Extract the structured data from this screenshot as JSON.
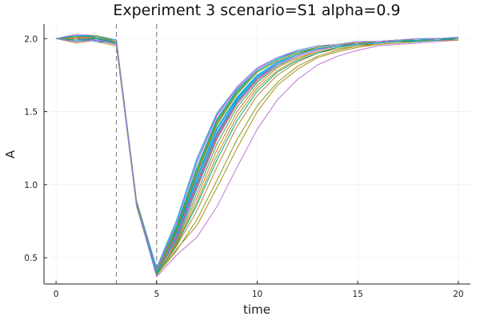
{
  "chart_data": {
    "type": "line",
    "title": "Experiment 3  scenario=S1  alpha=0.9",
    "xlabel": "time",
    "ylabel": "A",
    "xlim": [
      -0.6,
      20.6
    ],
    "ylim": [
      0.32,
      2.1
    ],
    "xticks": [
      0,
      5,
      10,
      15,
      20
    ],
    "yticks": [
      0.5,
      1.0,
      1.5,
      2.0
    ],
    "xtick_labels": [
      "0",
      "5",
      "10",
      "15",
      "20"
    ],
    "ytick_labels": [
      "0.5",
      "1.0",
      "1.5",
      "2.0"
    ],
    "grid": true,
    "legend": "none",
    "vlines": [
      3,
      5
    ],
    "x": [
      0,
      1,
      2,
      3,
      4,
      5,
      6,
      7,
      8,
      9,
      10,
      11,
      12,
      13,
      14,
      15,
      16,
      17,
      18,
      19,
      20
    ],
    "palette": [
      "#009AFA",
      "#E36F47",
      "#3EA44E",
      "#C371D2",
      "#AC8E18",
      "#00AAAE",
      "#ED5E93",
      "#C68225",
      "#00A98D",
      "#8E971D",
      "#00A9CD",
      "#9B7FE8"
    ],
    "series": [
      {
        "values": [
          2.0,
          2.02,
          2.01,
          1.98,
          0.88,
          0.39,
          0.66,
          1.02,
          1.36,
          1.58,
          1.74,
          1.83,
          1.89,
          1.93,
          1.95,
          1.97,
          1.97,
          1.98,
          1.98,
          1.99,
          1.99
        ]
      },
      {
        "values": [
          2.0,
          2.0,
          1.99,
          1.97,
          0.86,
          0.41,
          0.7,
          1.08,
          1.42,
          1.62,
          1.77,
          1.85,
          1.9,
          1.93,
          1.95,
          1.96,
          1.98,
          1.98,
          1.99,
          2.0,
          2.0
        ]
      },
      {
        "values": [
          2.0,
          1.98,
          2.0,
          1.96,
          0.87,
          0.4,
          0.62,
          0.94,
          1.28,
          1.53,
          1.7,
          1.81,
          1.88,
          1.92,
          1.95,
          1.96,
          1.97,
          1.98,
          1.99,
          1.99,
          2.0
        ]
      },
      {
        "values": [
          2.0,
          2.03,
          2.02,
          1.99,
          0.89,
          0.42,
          0.74,
          1.15,
          1.47,
          1.66,
          1.79,
          1.87,
          1.91,
          1.94,
          1.96,
          1.97,
          1.98,
          1.99,
          1.99,
          2.0,
          2.0
        ]
      },
      {
        "values": [
          2.0,
          2.01,
          1.98,
          1.95,
          0.85,
          0.38,
          0.6,
          0.88,
          1.2,
          1.47,
          1.66,
          1.78,
          1.86,
          1.91,
          1.94,
          1.96,
          1.97,
          1.98,
          1.98,
          1.99,
          1.99
        ]
      },
      {
        "values": [
          2.0,
          1.99,
          2.01,
          1.97,
          0.88,
          0.4,
          0.68,
          1.05,
          1.39,
          1.6,
          1.75,
          1.84,
          1.89,
          1.93,
          1.95,
          1.96,
          1.97,
          1.98,
          1.99,
          1.99,
          2.0
        ]
      },
      {
        "values": [
          2.0,
          2.02,
          2.0,
          1.98,
          0.87,
          0.41,
          0.65,
          1.0,
          1.33,
          1.56,
          1.72,
          1.82,
          1.88,
          1.92,
          1.95,
          1.96,
          1.98,
          1.98,
          1.99,
          2.0,
          2.0
        ]
      },
      {
        "values": [
          2.0,
          1.97,
          1.99,
          1.96,
          0.86,
          0.39,
          0.58,
          0.82,
          1.12,
          1.4,
          1.61,
          1.75,
          1.84,
          1.9,
          1.93,
          1.95,
          1.97,
          1.98,
          1.98,
          1.99,
          2.0
        ]
      },
      {
        "values": [
          2.0,
          2.01,
          2.01,
          1.98,
          0.88,
          0.4,
          0.71,
          1.1,
          1.44,
          1.64,
          1.78,
          1.86,
          1.91,
          1.94,
          1.96,
          1.97,
          1.98,
          1.99,
          1.99,
          2.0,
          2.0
        ]
      },
      {
        "values": [
          2.0,
          2.0,
          1.99,
          1.97,
          0.87,
          0.38,
          0.55,
          0.76,
          1.03,
          1.31,
          1.54,
          1.7,
          1.81,
          1.88,
          1.92,
          1.95,
          1.96,
          1.97,
          1.98,
          1.99,
          1.99
        ]
      },
      {
        "values": [
          2.0,
          2.02,
          2.02,
          1.99,
          0.89,
          0.43,
          0.76,
          1.18,
          1.49,
          1.67,
          1.8,
          1.87,
          1.92,
          1.95,
          1.96,
          1.98,
          1.98,
          1.99,
          2.0,
          2.0,
          2.01
        ]
      },
      {
        "values": [
          2.0,
          1.98,
          2.0,
          1.96,
          0.86,
          0.39,
          0.63,
          0.97,
          1.31,
          1.55,
          1.71,
          1.82,
          1.88,
          1.92,
          1.95,
          1.96,
          1.97,
          1.98,
          1.99,
          1.99,
          2.0
        ]
      },
      {
        "values": [
          2.0,
          2.01,
          1.98,
          1.97,
          0.87,
          0.4,
          0.67,
          1.04,
          1.38,
          1.59,
          1.75,
          1.84,
          1.89,
          1.93,
          1.95,
          1.97,
          1.98,
          1.98,
          1.99,
          2.0,
          2.0
        ]
      },
      {
        "values": [
          2.0,
          1.99,
          2.01,
          1.98,
          0.88,
          0.41,
          0.64,
          0.98,
          1.32,
          1.56,
          1.72,
          1.83,
          1.89,
          1.93,
          1.95,
          1.96,
          1.97,
          1.98,
          1.99,
          1.99,
          2.0
        ]
      },
      {
        "values": [
          2.0,
          2.02,
          2.0,
          1.97,
          0.87,
          0.4,
          0.69,
          1.07,
          1.41,
          1.62,
          1.77,
          1.85,
          1.9,
          1.94,
          1.96,
          1.97,
          1.98,
          1.99,
          1.99,
          2.0,
          2.0
        ]
      },
      {
        "values": [
          2.0,
          2.0,
          1.99,
          1.96,
          0.86,
          0.37,
          0.52,
          0.64,
          0.85,
          1.12,
          1.38,
          1.58,
          1.72,
          1.82,
          1.88,
          1.92,
          1.95,
          1.96,
          1.97,
          1.98,
          1.99
        ]
      },
      {
        "values": [
          2.0,
          2.01,
          2.01,
          1.98,
          0.88,
          0.39,
          0.56,
          0.72,
          0.98,
          1.25,
          1.5,
          1.68,
          1.79,
          1.87,
          1.91,
          1.94,
          1.96,
          1.97,
          1.98,
          1.99,
          1.99
        ]
      },
      {
        "values": [
          2.0,
          1.98,
          2.0,
          1.97,
          0.87,
          0.42,
          0.72,
          1.12,
          1.45,
          1.65,
          1.78,
          1.86,
          1.91,
          1.94,
          1.96,
          1.97,
          1.98,
          1.99,
          1.99,
          2.0,
          2.0
        ]
      },
      {
        "values": [
          2.0,
          2.02,
          1.99,
          1.98,
          0.88,
          0.41,
          0.66,
          1.01,
          1.35,
          1.57,
          1.73,
          1.83,
          1.89,
          1.93,
          1.95,
          1.97,
          1.98,
          1.98,
          1.99,
          2.0,
          2.0
        ]
      },
      {
        "values": [
          2.0,
          2.0,
          2.01,
          1.96,
          0.86,
          0.4,
          0.61,
          0.91,
          1.24,
          1.5,
          1.68,
          1.8,
          1.87,
          1.91,
          1.94,
          1.96,
          1.97,
          1.98,
          1.99,
          1.99,
          2.0
        ]
      },
      {
        "values": [
          2.0,
          1.99,
          2.0,
          1.97,
          0.87,
          0.39,
          0.59,
          0.86,
          1.17,
          1.44,
          1.64,
          1.77,
          1.85,
          1.9,
          1.94,
          1.96,
          1.97,
          1.98,
          1.98,
          1.99,
          2.0
        ]
      },
      {
        "values": [
          2.0,
          2.01,
          2.02,
          1.98,
          0.88,
          0.41,
          0.7,
          1.09,
          1.43,
          1.63,
          1.77,
          1.85,
          1.9,
          1.94,
          1.96,
          1.97,
          1.98,
          1.99,
          1.99,
          2.0,
          2.0
        ]
      },
      {
        "values": [
          2.0,
          2.02,
          2.01,
          1.97,
          0.87,
          0.4,
          0.64,
          0.99,
          1.34,
          1.57,
          1.73,
          1.83,
          1.89,
          1.93,
          1.95,
          1.96,
          1.97,
          1.98,
          1.99,
          2.0,
          2.0
        ]
      },
      {
        "values": [
          2.0,
          1.98,
          1.99,
          1.96,
          0.86,
          0.42,
          0.74,
          1.16,
          1.48,
          1.67,
          1.8,
          1.87,
          1.92,
          1.95,
          1.96,
          1.98,
          1.98,
          1.99,
          2.0,
          2.0,
          2.01
        ]
      }
    ]
  }
}
